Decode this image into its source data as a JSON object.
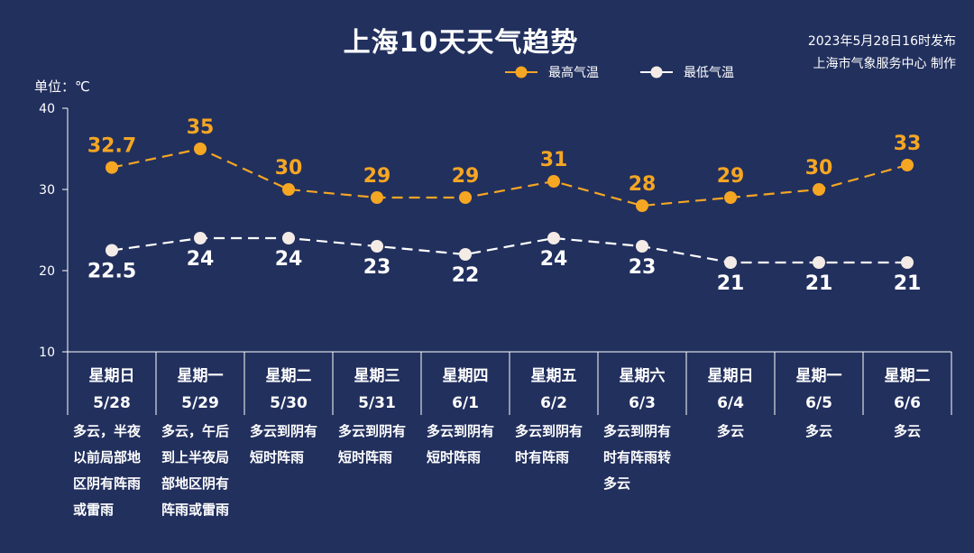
{
  "header": {
    "title": "上海10天天气趋势",
    "publish_time": "2023年5月28日16时发布",
    "publisher": "上海市气象服务中心 制作"
  },
  "unit_label": "单位：℃",
  "colors": {
    "background": "#22305e",
    "high": "#f5a623",
    "low": "#ffffff",
    "axis": "#ffffff"
  },
  "chart_data": {
    "type": "line",
    "ylim": [
      10,
      40
    ],
    "yticks": [
      10,
      20,
      30,
      40
    ],
    "grid": false,
    "legend_position": "top-right",
    "categories": [
      {
        "weekday": "星期日",
        "date": "5/28",
        "weather": [
          "多云，半夜",
          "以前局部地",
          "区阴有阵雨",
          "或雷雨"
        ]
      },
      {
        "weekday": "星期一",
        "date": "5/29",
        "weather": [
          "多云，午后",
          "到上半夜局",
          "部地区阴有",
          "阵雨或雷雨"
        ]
      },
      {
        "weekday": "星期二",
        "date": "5/30",
        "weather": [
          "多云到阴有",
          "短时阵雨"
        ]
      },
      {
        "weekday": "星期三",
        "date": "5/31",
        "weather": [
          "多云到阴有",
          "短时阵雨"
        ]
      },
      {
        "weekday": "星期四",
        "date": "6/1",
        "weather": [
          "多云到阴有",
          "短时阵雨"
        ]
      },
      {
        "weekday": "星期五",
        "date": "6/2",
        "weather": [
          "多云到阴有",
          "时有阵雨"
        ]
      },
      {
        "weekday": "星期六",
        "date": "6/3",
        "weather": [
          "多云到阴有",
          "时有阵雨转",
          "多云"
        ]
      },
      {
        "weekday": "星期日",
        "date": "6/4",
        "weather": [
          "多云"
        ]
      },
      {
        "weekday": "星期一",
        "date": "6/5",
        "weather": [
          "多云"
        ]
      },
      {
        "weekday": "星期二",
        "date": "6/6",
        "weather": [
          "多云"
        ]
      }
    ],
    "series": [
      {
        "name": "最高气温",
        "values": [
          32.7,
          35,
          30,
          29,
          29,
          31,
          28,
          29,
          30,
          33
        ],
        "labels": [
          "32.7",
          "35",
          "30",
          "29",
          "29",
          "31",
          "28",
          "29",
          "30",
          "33"
        ]
      },
      {
        "name": "最低气温",
        "values": [
          22.5,
          24,
          24,
          23,
          22,
          24,
          23,
          21,
          21,
          21
        ],
        "labels": [
          "22.5",
          "24",
          "24",
          "23",
          "22",
          "24",
          "23",
          "21",
          "21",
          "21"
        ]
      }
    ]
  }
}
